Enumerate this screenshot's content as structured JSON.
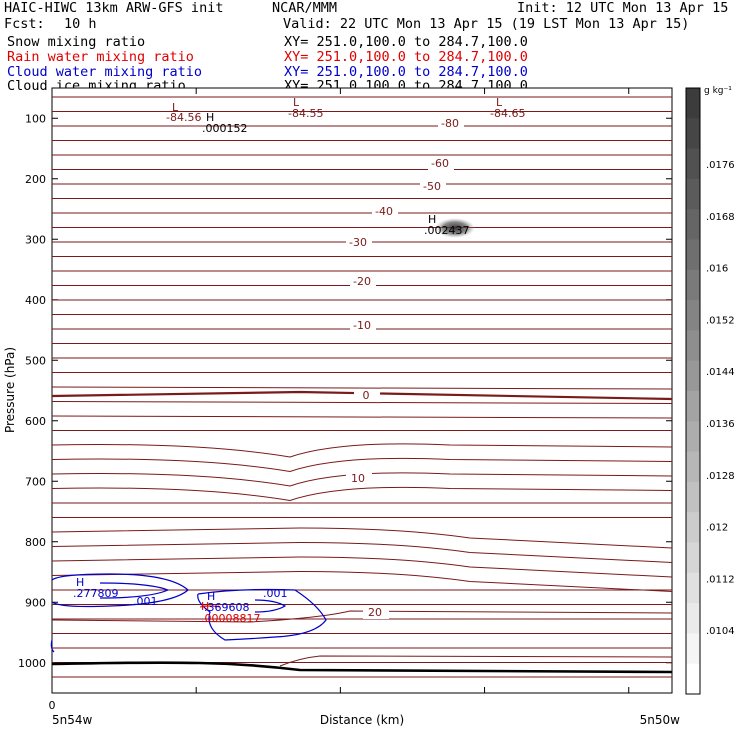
{
  "header": {
    "model": "HAIC-HIWC 13km ARW-GFS init",
    "org": "NCAR/MMM",
    "init": "Init: 12 UTC Mon 13 Apr 15",
    "fcst_label": "Fcst:",
    "fcst_value": "10 h",
    "valid": "Valid: 22 UTC Mon 13 Apr 15 (19 LST Mon 13 Apr 15)"
  },
  "fields": [
    {
      "name": "Snow mixing ratio",
      "xy": "XY= 251.0,100.0 to 284.7,100.0",
      "color": "#000000"
    },
    {
      "name": "Rain water mixing ratio",
      "xy": "XY= 251.0,100.0 to 284.7,100.0",
      "color": "#e00000"
    },
    {
      "name": "Cloud water mixing ratio",
      "xy": "XY= 251.0,100.0 to 284.7,100.0",
      "color": "#0000cc"
    },
    {
      "name": "Cloud ice mixing ratio",
      "xy": "XY= 251.0,100.0 to 284.7,100.0",
      "color": "#000000"
    }
  ],
  "chart_data": {
    "type": "contour",
    "xlabel": "Distance (km)",
    "ylabel": "Pressure (hPa)",
    "x_tick_labels": {
      "left": "0"
    },
    "x_end_labels": {
      "left": "5n54w",
      "right": "5n50w"
    },
    "y_ticks": [
      100,
      200,
      300,
      400,
      500,
      600,
      700,
      800,
      900,
      1000
    ],
    "y_range": [
      1050,
      50
    ],
    "temperature_contours": {
      "color": "#7a1a1a",
      "levels": [
        -80,
        -60,
        -50,
        -40,
        -30,
        -20,
        -10,
        0,
        10,
        20
      ],
      "labels": [
        "-80",
        "-60",
        "-50",
        "-40",
        "-30",
        "-20",
        "-10",
        "0",
        "10",
        "20"
      ]
    },
    "extrema": [
      {
        "type": "L",
        "value": "-84.56",
        "color": "#7a1a1a"
      },
      {
        "type": "L",
        "value": "-84.55",
        "color": "#7a1a1a"
      },
      {
        "type": "L",
        "value": "-84.65",
        "color": "#7a1a1a"
      },
      {
        "type": "H",
        "value": ".000152",
        "color": "#000000"
      },
      {
        "type": "H",
        "value": ".002437",
        "color": "#000000"
      },
      {
        "type": "H",
        "value": ".277809",
        "color": "#0000cc"
      },
      {
        "type": "H",
        "value": ".369608",
        "color": "#0000cc"
      },
      {
        "type": "H",
        "value": ".00008817",
        "color": "#e00000"
      }
    ],
    "cloud_water_contour_labels": [
      ".001",
      ".001"
    ],
    "colorbar": {
      "unit": "g kg⁻¹",
      "labels": [
        ".0176",
        ".0168",
        ".016",
        ".0152",
        ".0144",
        ".0136",
        ".0128",
        ".012",
        ".0112",
        ".0104"
      ]
    }
  }
}
